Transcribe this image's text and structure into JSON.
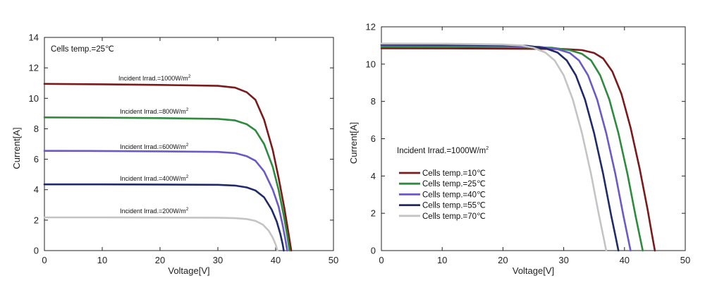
{
  "chart_data": [
    {
      "type": "line",
      "title": "",
      "xlabel": "Voltage[V]",
      "ylabel": "Current[A]",
      "xlim": [
        0,
        50
      ],
      "ylim": [
        0,
        14
      ],
      "xticks": [
        "0",
        "10",
        "20",
        "30",
        "40",
        "50"
      ],
      "yticks": [
        "0",
        "2",
        "4",
        "6",
        "8",
        "10",
        "12",
        "14"
      ],
      "grid": false,
      "annotation": "Cells temp.=25℃",
      "series": [
        {
          "name": "Incident Irrad.=1000W/m",
          "label_sup": "2",
          "color": "#7a1a1a",
          "x": [
            0,
            10,
            20,
            30,
            33,
            35,
            36.5,
            38,
            39.5,
            40.5,
            41.5,
            42.2,
            42.7
          ],
          "y": [
            10.95,
            10.92,
            10.88,
            10.82,
            10.7,
            10.4,
            9.9,
            8.6,
            6.6,
            4.8,
            2.8,
            1.2,
            0
          ]
        },
        {
          "name": "Incident Irrad.=800W/m",
          "label_sup": "2",
          "color": "#2e8b3e",
          "x": [
            0,
            10,
            20,
            30,
            33,
            35,
            36.5,
            38,
            39.5,
            40.5,
            41.4,
            42,
            42.4
          ],
          "y": [
            8.75,
            8.73,
            8.7,
            8.65,
            8.55,
            8.3,
            7.9,
            7.0,
            5.5,
            4.0,
            2.3,
            1.0,
            0
          ]
        },
        {
          "name": "Incident Irrad.=600W/m",
          "label_sup": "2",
          "color": "#6a5ac8",
          "x": [
            0,
            10,
            20,
            30,
            33,
            35,
            36.5,
            38,
            39.5,
            40.5,
            41.2,
            41.7,
            42.0
          ],
          "y": [
            6.55,
            6.54,
            6.52,
            6.48,
            6.4,
            6.2,
            5.9,
            5.2,
            4.0,
            2.9,
            1.7,
            0.7,
            0
          ]
        },
        {
          "name": "Incident Irrad.=400W/m",
          "label_sup": "2",
          "color": "#1f2a6b",
          "x": [
            0,
            10,
            20,
            30,
            33,
            35,
            36.5,
            38,
            39.3,
            40.2,
            40.8,
            41.2,
            41.4
          ],
          "y": [
            4.35,
            4.35,
            4.34,
            4.32,
            4.27,
            4.15,
            3.95,
            3.5,
            2.7,
            1.9,
            1.1,
            0.45,
            0
          ]
        },
        {
          "name": "Incident Irrad.=200W/m",
          "label_sup": "2",
          "color": "#c4c4c4",
          "x": [
            0,
            10,
            20,
            30,
            33,
            35,
            36.5,
            37.8,
            38.8,
            39.5,
            40.0,
            40.3
          ],
          "y": [
            2.18,
            2.18,
            2.17,
            2.16,
            2.13,
            2.07,
            1.95,
            1.7,
            1.3,
            0.85,
            0.4,
            0
          ]
        }
      ]
    },
    {
      "type": "line",
      "title": "",
      "xlabel": "Voltage[V]",
      "ylabel": "Current[A]",
      "xlim": [
        0,
        50
      ],
      "ylim": [
        0,
        12
      ],
      "xticks": [
        "0",
        "10",
        "20",
        "30",
        "40",
        "50"
      ],
      "yticks": [
        "0",
        "2",
        "4",
        "6",
        "8",
        "10",
        "12"
      ],
      "grid": false,
      "annotation": "Incident Irrad.=1000W/m",
      "annotation_sup": "2",
      "legend_placement": "left-middle",
      "series": [
        {
          "name": "Cells temp.=10℃",
          "color": "#7a1a1a",
          "x": [
            0,
            10,
            20,
            30,
            33,
            35,
            36.5,
            38,
            39.5,
            41,
            42.5,
            43.8,
            44.5,
            45.0
          ],
          "y": [
            10.85,
            10.84,
            10.83,
            10.81,
            10.75,
            10.6,
            10.3,
            9.6,
            8.4,
            6.6,
            4.4,
            2.2,
            0.9,
            0
          ]
        },
        {
          "name": "Cells temp.=25℃",
          "color": "#2e8b3e",
          "x": [
            0,
            10,
            20,
            28,
            31,
            33,
            34.5,
            36,
            37.5,
            39,
            40.5,
            41.8,
            42.5,
            43.0
          ],
          "y": [
            10.95,
            10.94,
            10.92,
            10.88,
            10.75,
            10.55,
            10.2,
            9.4,
            8.1,
            6.3,
            4.1,
            1.9,
            0.8,
            0
          ]
        },
        {
          "name": "Cells temp.=40℃",
          "color": "#6a5ac8",
          "x": [
            0,
            10,
            20,
            26,
            29,
            31,
            32.5,
            34,
            35.5,
            37,
            38.5,
            39.8,
            40.5,
            41.0
          ],
          "y": [
            11.0,
            10.99,
            10.97,
            10.93,
            10.8,
            10.6,
            10.2,
            9.4,
            8.1,
            6.3,
            4.1,
            1.9,
            0.8,
            0
          ]
        },
        {
          "name": "Cells temp.=55℃",
          "color": "#1f2a6b",
          "x": [
            0,
            10,
            20,
            24,
            27,
            29,
            30.5,
            32,
            33.5,
            35,
            36.5,
            37.8,
            38.5,
            39.0
          ],
          "y": [
            11.05,
            11.04,
            11.02,
            10.98,
            10.85,
            10.62,
            10.2,
            9.4,
            8.1,
            6.3,
            4.1,
            1.9,
            0.8,
            0
          ]
        },
        {
          "name": "Cells temp.=70℃",
          "color": "#c4c4c4",
          "x": [
            0,
            10,
            20,
            23,
            25,
            27,
            28.5,
            30,
            31.5,
            33,
            34.5,
            35.8,
            36.5,
            37.0
          ],
          "y": [
            11.1,
            11.09,
            11.05,
            11.0,
            10.88,
            10.62,
            10.2,
            9.4,
            8.1,
            6.3,
            4.1,
            1.9,
            0.8,
            0
          ]
        }
      ]
    }
  ]
}
